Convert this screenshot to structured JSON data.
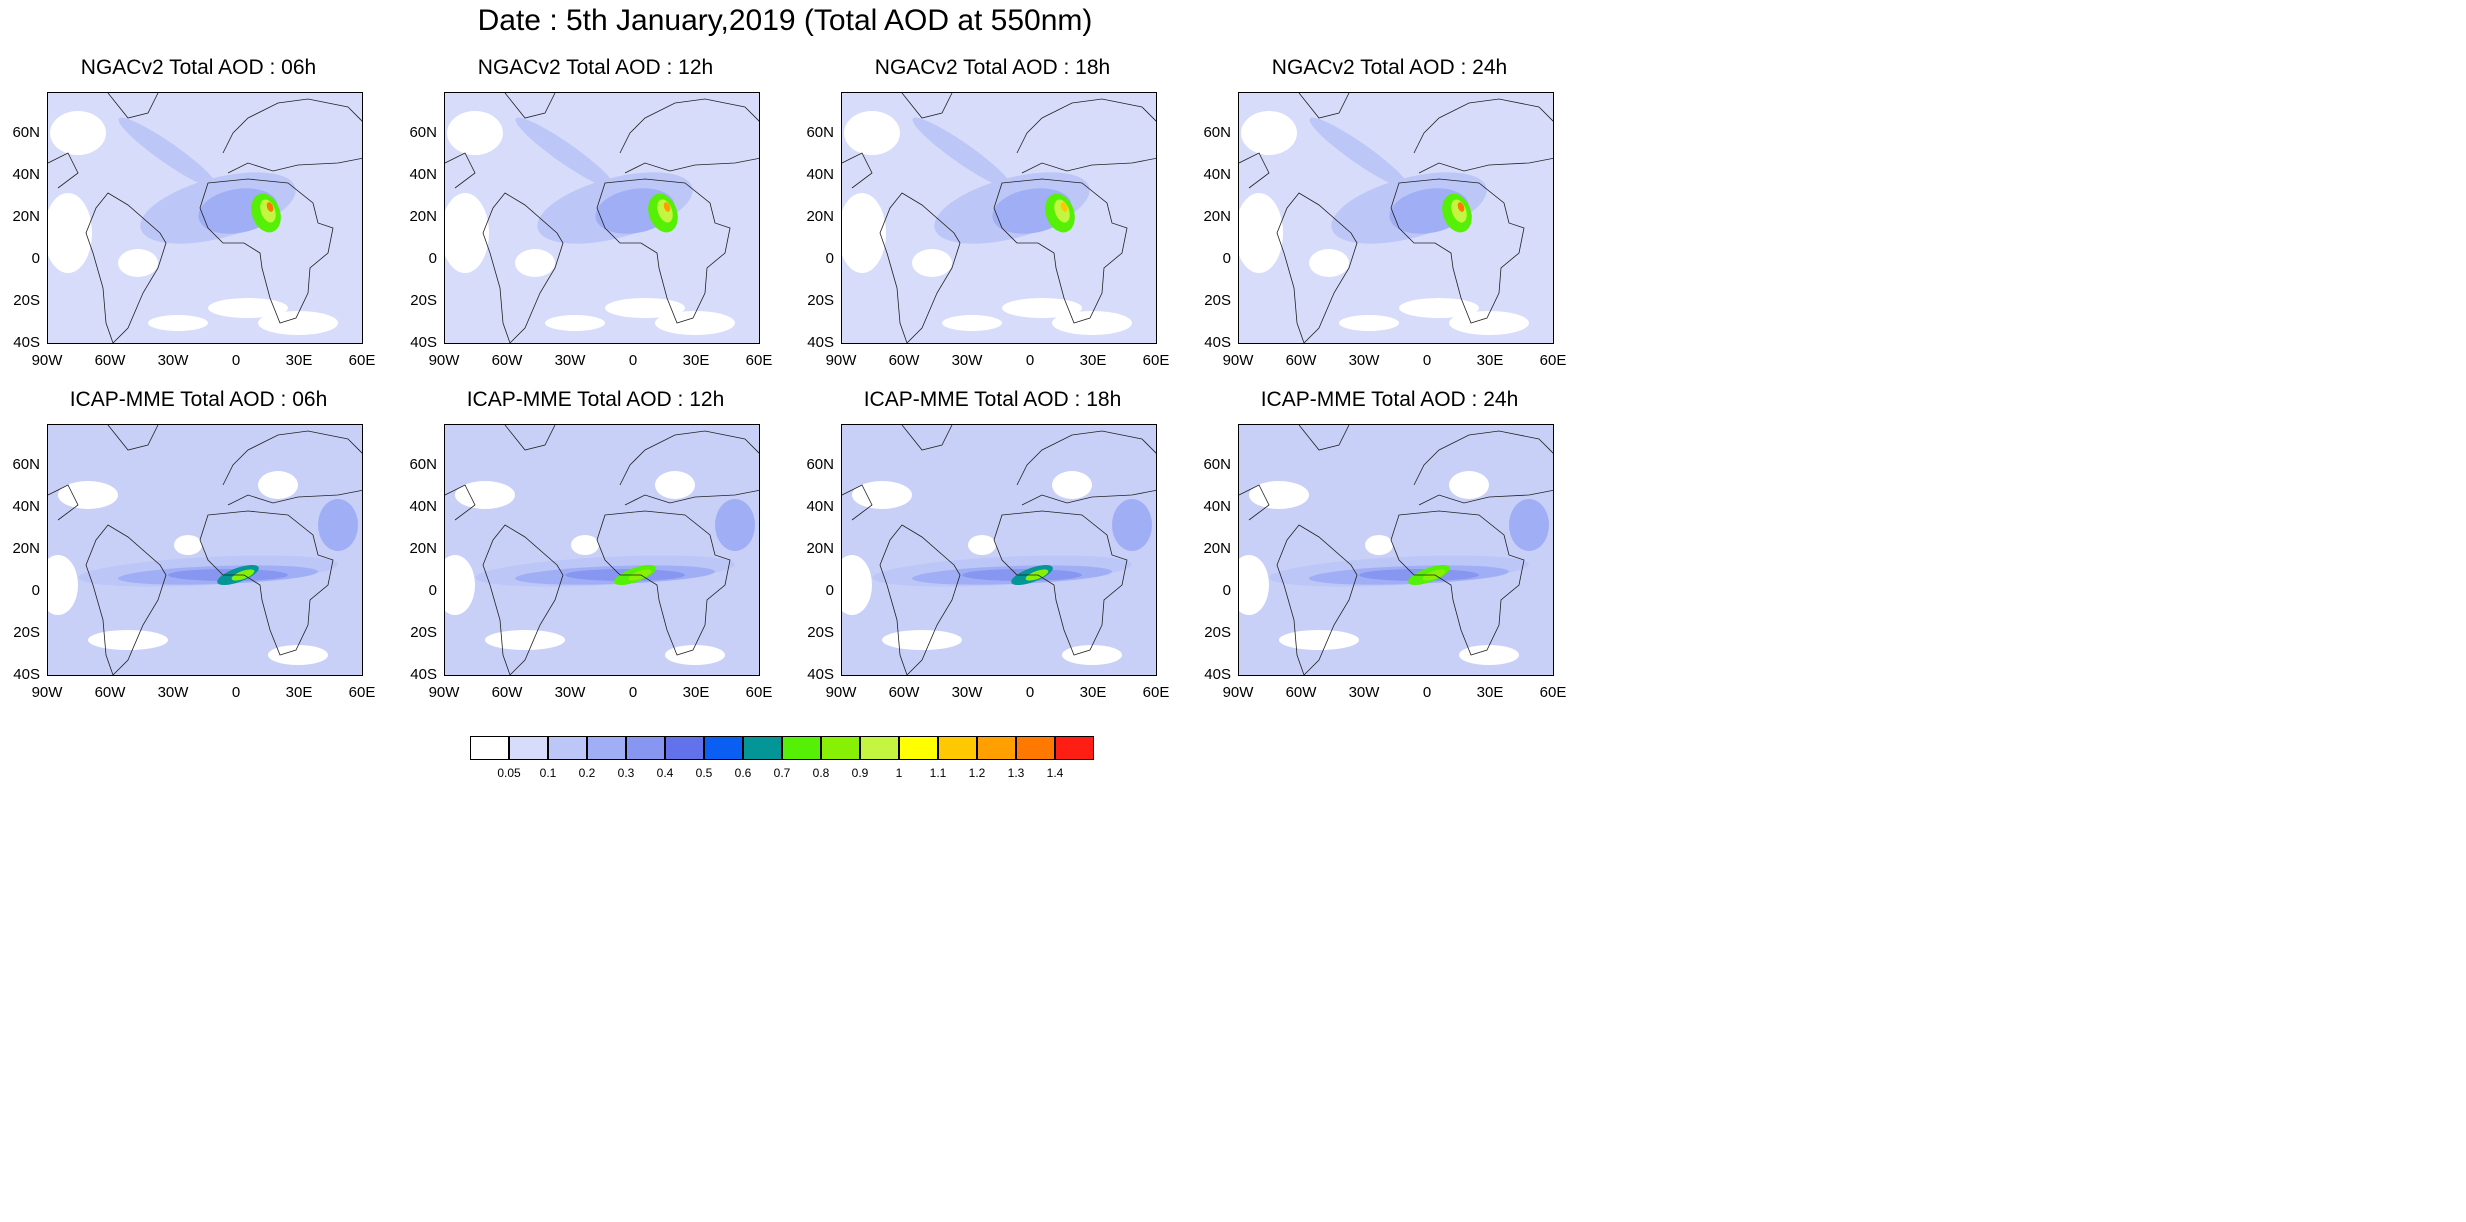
{
  "title": "Date : 5th January,2019 (Total AOD at 550nm)",
  "panels": [
    {
      "title": "NGACv2 Total AOD : 06h",
      "model": "NGACv2"
    },
    {
      "title": "NGACv2 Total AOD : 12h",
      "model": "NGACv2"
    },
    {
      "title": "NGACv2 Total AOD : 18h",
      "model": "NGACv2"
    },
    {
      "title": "NGACv2 Total AOD : 24h",
      "model": "NGACv2"
    },
    {
      "title": "ICAP-MME Total AOD : 06h",
      "model": "ICAP-MME"
    },
    {
      "title": "ICAP-MME Total AOD : 12h",
      "model": "ICAP-MME"
    },
    {
      "title": "ICAP-MME Total AOD : 18h",
      "model": "ICAP-MME"
    },
    {
      "title": "ICAP-MME Total AOD : 24h",
      "model": "ICAP-MME"
    }
  ],
  "axes": {
    "lat_labels": [
      "60N",
      "40N",
      "20N",
      "0",
      "20S",
      "40S"
    ],
    "lon_labels": [
      "90W",
      "60W",
      "30W",
      "0",
      "30E",
      "60E"
    ]
  },
  "colorbar": {
    "labels": [
      "0.05",
      "0.1",
      "0.2",
      "0.3",
      "0.4",
      "0.5",
      "0.6",
      "0.7",
      "0.8",
      "0.9",
      "1",
      "1.1",
      "1.2",
      "1.3",
      "1.4"
    ],
    "colors": [
      "#ffffff",
      "#d6dcfa",
      "#bcc6f7",
      "#a0aef5",
      "#8796f0",
      "#6272ea",
      "#0a5ff2",
      "#049696",
      "#55f005",
      "#88f005",
      "#c4f541",
      "#ffff00",
      "#ffc800",
      "#ffa000",
      "#ff7800",
      "#ff1e14"
    ]
  }
}
